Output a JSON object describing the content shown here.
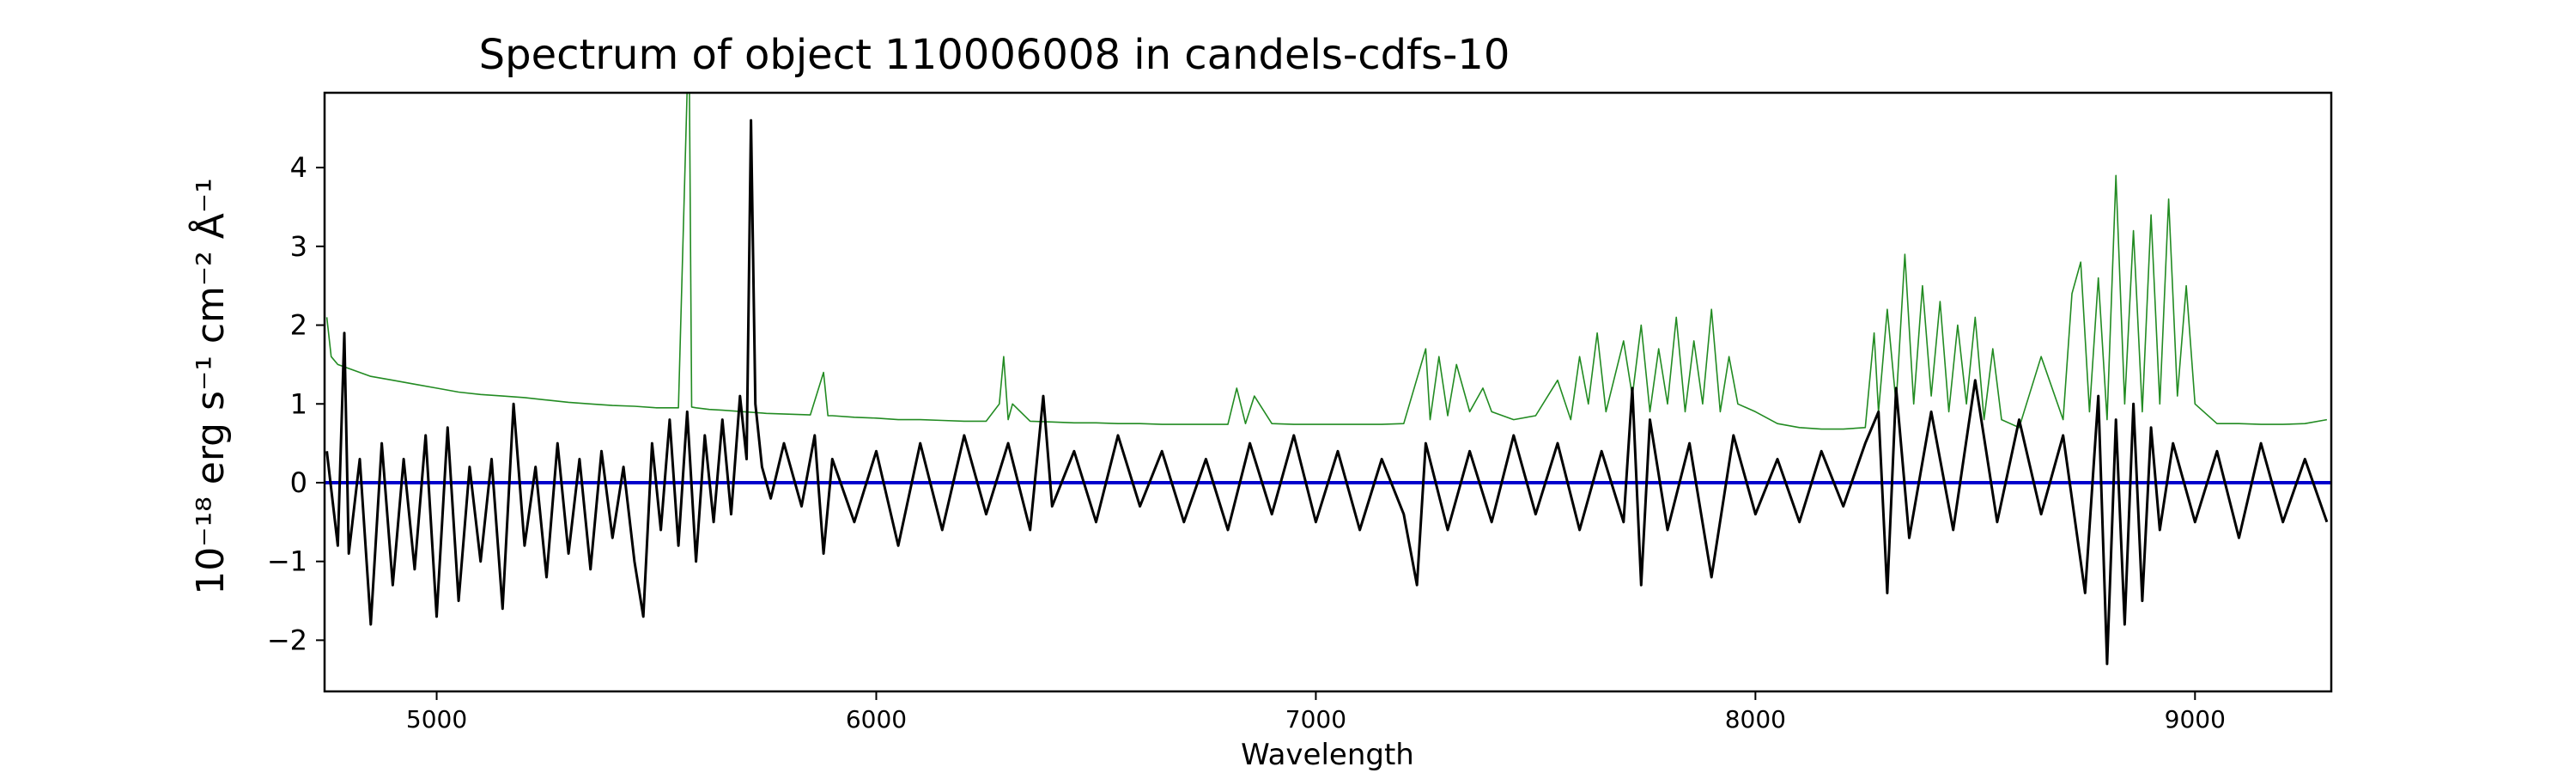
{
  "chart_data": {
    "type": "line",
    "title": "Spectrum of object 110006008 in candels-cdfs-10",
    "xlabel": "Wavelength",
    "ylabel": "10⁻¹⁸ erg s⁻¹ cm⁻² Å⁻¹",
    "xlim": [
      4745,
      9310
    ],
    "ylim": [
      -2.65,
      4.95
    ],
    "xticks": [
      5000,
      6000,
      7000,
      8000,
      9000
    ],
    "yticks": [
      -2,
      -1,
      0,
      1,
      2,
      3,
      4
    ],
    "xtick_labels": [
      "5000",
      "6000",
      "7000",
      "8000",
      "9000"
    ],
    "ytick_labels": [
      "−2",
      "−1",
      "0",
      "1",
      "2",
      "3",
      "4"
    ],
    "grid": false,
    "colors": {
      "flux": "#000000",
      "error": "#228B22",
      "zero": "#0000CC"
    },
    "series": [
      {
        "role": "flux",
        "x": [
          4750,
          4775,
          4790,
          4800,
          4825,
          4850,
          4875,
          4900,
          4925,
          4950,
          4975,
          5000,
          5025,
          5050,
          5075,
          5100,
          5125,
          5150,
          5175,
          5200,
          5225,
          5250,
          5275,
          5300,
          5325,
          5350,
          5375,
          5400,
          5425,
          5450,
          5470,
          5490,
          5510,
          5530,
          5550,
          5570,
          5590,
          5610,
          5630,
          5650,
          5670,
          5690,
          5705,
          5715,
          5725,
          5740,
          5760,
          5790,
          5830,
          5860,
          5880,
          5900,
          5950,
          6000,
          6050,
          6100,
          6150,
          6200,
          6250,
          6300,
          6350,
          6380,
          6400,
          6450,
          6500,
          6550,
          6600,
          6650,
          6700,
          6750,
          6800,
          6850,
          6900,
          6950,
          7000,
          7050,
          7100,
          7150,
          7200,
          7230,
          7250,
          7300,
          7350,
          7400,
          7450,
          7500,
          7550,
          7600,
          7650,
          7700,
          7720,
          7740,
          7760,
          7800,
          7850,
          7900,
          7950,
          8000,
          8050,
          8100,
          8150,
          8200,
          8250,
          8280,
          8300,
          8320,
          8350,
          8400,
          8450,
          8500,
          8550,
          8600,
          8650,
          8700,
          8750,
          8780,
          8800,
          8820,
          8840,
          8860,
          8880,
          8900,
          8920,
          8950,
          9000,
          9050,
          9100,
          9150,
          9200,
          9250,
          9300
        ],
        "y": [
          0.4,
          -0.8,
          1.9,
          -0.9,
          0.3,
          -1.8,
          0.5,
          -1.3,
          0.3,
          -1.1,
          0.6,
          -1.7,
          0.7,
          -1.5,
          0.2,
          -1.0,
          0.3,
          -1.6,
          1.0,
          -0.8,
          0.2,
          -1.2,
          0.5,
          -0.9,
          0.3,
          -1.1,
          0.4,
          -0.7,
          0.2,
          -1.0,
          -1.7,
          0.5,
          -0.6,
          0.8,
          -0.8,
          0.9,
          -1.0,
          0.6,
          -0.5,
          0.8,
          -0.4,
          1.1,
          0.3,
          4.6,
          1.0,
          0.2,
          -0.2,
          0.5,
          -0.3,
          0.6,
          -0.9,
          0.3,
          -0.5,
          0.4,
          -0.8,
          0.5,
          -0.6,
          0.6,
          -0.4,
          0.5,
          -0.6,
          1.1,
          -0.3,
          0.4,
          -0.5,
          0.6,
          -0.3,
          0.4,
          -0.5,
          0.3,
          -0.6,
          0.5,
          -0.4,
          0.6,
          -0.5,
          0.4,
          -0.6,
          0.3,
          -0.4,
          -1.3,
          0.5,
          -0.6,
          0.4,
          -0.5,
          0.6,
          -0.4,
          0.5,
          -0.6,
          0.4,
          -0.5,
          1.2,
          -1.3,
          0.8,
          -0.6,
          0.5,
          -1.2,
          0.6,
          -0.4,
          0.3,
          -0.5,
          0.4,
          -0.3,
          0.5,
          0.9,
          -1.4,
          1.2,
          -0.7,
          0.9,
          -0.6,
          1.3,
          -0.5,
          0.8,
          -0.4,
          0.6,
          -1.4,
          1.1,
          -2.3,
          0.8,
          -1.8,
          1.0,
          -1.5,
          0.7,
          -0.6,
          0.5,
          -0.5,
          0.4,
          -0.7,
          0.5,
          -0.5,
          0.3,
          -0.5
        ]
      },
      {
        "role": "error",
        "x": [
          4750,
          4760,
          4775,
          4800,
          4850,
          4900,
          4950,
          5000,
          5050,
          5100,
          5150,
          5200,
          5250,
          5300,
          5350,
          5400,
          5450,
          5500,
          5550,
          5570,
          5575,
          5580,
          5590,
          5620,
          5650,
          5700,
          5750,
          5800,
          5850,
          5880,
          5890,
          5900,
          5950,
          6000,
          6050,
          6100,
          6150,
          6200,
          6250,
          6280,
          6290,
          6300,
          6310,
          6350,
          6400,
          6450,
          6500,
          6550,
          6600,
          6650,
          6700,
          6750,
          6800,
          6820,
          6840,
          6860,
          6900,
          6950,
          7000,
          7050,
          7100,
          7150,
          7200,
          7250,
          7260,
          7280,
          7300,
          7320,
          7350,
          7380,
          7400,
          7450,
          7500,
          7550,
          7580,
          7600,
          7620,
          7640,
          7660,
          7700,
          7720,
          7740,
          7760,
          7780,
          7800,
          7820,
          7840,
          7860,
          7880,
          7900,
          7920,
          7940,
          7960,
          8000,
          8050,
          8100,
          8150,
          8200,
          8250,
          8270,
          8280,
          8300,
          8320,
          8340,
          8360,
          8380,
          8400,
          8420,
          8440,
          8460,
          8480,
          8500,
          8520,
          8540,
          8560,
          8600,
          8650,
          8700,
          8720,
          8740,
          8760,
          8780,
          8800,
          8820,
          8840,
          8860,
          8880,
          8900,
          8920,
          8940,
          8960,
          8980,
          9000,
          9050,
          9100,
          9150,
          9200,
          9250,
          9300
        ],
        "y": [
          2.1,
          1.6,
          1.5,
          1.45,
          1.35,
          1.3,
          1.25,
          1.2,
          1.15,
          1.12,
          1.1,
          1.08,
          1.05,
          1.02,
          1.0,
          0.98,
          0.97,
          0.95,
          0.95,
          5.0,
          5.0,
          0.96,
          0.95,
          0.93,
          0.92,
          0.9,
          0.88,
          0.87,
          0.86,
          1.4,
          0.85,
          0.85,
          0.83,
          0.82,
          0.8,
          0.8,
          0.79,
          0.78,
          0.78,
          1.0,
          1.6,
          0.8,
          1.0,
          0.78,
          0.77,
          0.76,
          0.76,
          0.75,
          0.75,
          0.74,
          0.74,
          0.74,
          0.74,
          1.2,
          0.75,
          1.1,
          0.75,
          0.74,
          0.74,
          0.74,
          0.74,
          0.74,
          0.75,
          1.7,
          0.8,
          1.6,
          0.85,
          1.5,
          0.9,
          1.2,
          0.9,
          0.8,
          0.85,
          1.3,
          0.8,
          1.6,
          1.0,
          1.9,
          0.9,
          1.8,
          1.1,
          2.0,
          0.9,
          1.7,
          1.0,
          2.1,
          0.9,
          1.8,
          1.0,
          2.2,
          0.9,
          1.6,
          1.0,
          0.9,
          0.75,
          0.7,
          0.68,
          0.68,
          0.7,
          1.9,
          0.9,
          2.2,
          1.0,
          2.9,
          1.0,
          2.5,
          1.1,
          2.3,
          0.9,
          2.0,
          1.0,
          2.1,
          0.8,
          1.7,
          0.8,
          0.7,
          1.6,
          0.8,
          2.4,
          2.8,
          0.9,
          2.6,
          0.8,
          3.9,
          1.0,
          3.2,
          0.9,
          3.4,
          1.0,
          3.6,
          1.1,
          2.5,
          1.0,
          0.75,
          0.75,
          0.74,
          0.74,
          0.75,
          0.8
        ]
      },
      {
        "role": "zero",
        "x": [
          4745,
          9310
        ],
        "y": [
          0,
          0
        ]
      }
    ]
  }
}
